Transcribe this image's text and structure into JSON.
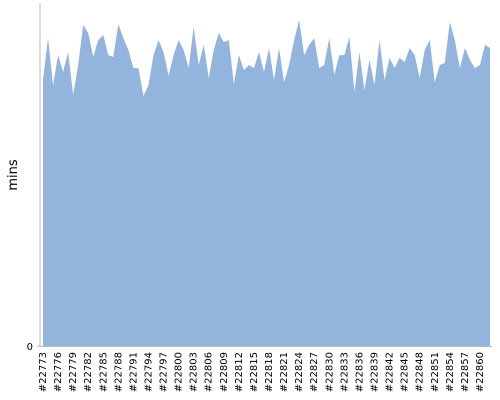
{
  "chart_data": {
    "type": "area",
    "y_label": "mins",
    "color": "#92b4dd",
    "categories": [
      "#22773",
      null,
      null,
      "#22776",
      null,
      null,
      "#22779",
      null,
      null,
      "#22782",
      null,
      null,
      "#22785",
      null,
      null,
      "#22788",
      null,
      null,
      "#22791",
      null,
      null,
      "#22794",
      null,
      null,
      "#22797",
      null,
      null,
      "#22800",
      null,
      null,
      "#22803",
      null,
      null,
      "#22806",
      null,
      null,
      "#22809",
      null,
      null,
      "#22812",
      null,
      null,
      "#22815",
      null,
      null,
      "#22818",
      null,
      null,
      "#22821",
      null,
      null,
      "#22824",
      null,
      null,
      "#22827",
      null,
      null,
      "#22830",
      null,
      null,
      "#22833",
      null,
      null,
      "#22836",
      null,
      null,
      "#22839",
      null,
      null,
      "#22842",
      null,
      null,
      "#22845",
      null,
      null,
      "#22848",
      null,
      null,
      "#22851",
      null,
      null,
      "#22854",
      null,
      null,
      "#22857",
      null,
      null,
      "#22860",
      null,
      null
    ],
    "values": [
      78.0,
      90.3,
      76.5,
      85.3,
      80.4,
      86.2,
      73.6,
      82.4,
      94.1,
      91.8,
      84.8,
      89.7,
      91.2,
      85.3,
      84.8,
      94.4,
      90.3,
      86.8,
      81.5,
      81.5,
      73.3,
      76.5,
      85.3,
      89.7,
      86.2,
      79.2,
      85.3,
      89.7,
      86.8,
      81.5,
      93.5,
      82.4,
      88.3,
      78.6,
      86.8,
      91.8,
      89.1,
      89.7,
      76.8,
      85.3,
      80.9,
      82.4,
      81.5,
      86.2,
      80.4,
      87.4,
      78.0,
      87.4,
      77.4,
      82.4,
      89.7,
      95.6,
      85.3,
      88.3,
      90.3,
      81.5,
      82.4,
      90.3,
      79.5,
      85.3,
      85.3,
      90.6,
      74.5,
      86.2,
      75.1,
      83.9,
      76.5,
      89.7,
      78.0,
      84.5,
      81.5,
      84.5,
      83.3,
      87.4,
      85.3,
      78.6,
      86.8,
      89.7,
      77.4,
      82.4,
      83.0,
      95.0,
      89.7,
      81.5,
      87.4,
      83.9,
      81.5,
      82.4,
      88.3,
      87.4
    ],
    "ylim": [
      0,
      100
    ],
    "yticks": [
      0
    ]
  }
}
